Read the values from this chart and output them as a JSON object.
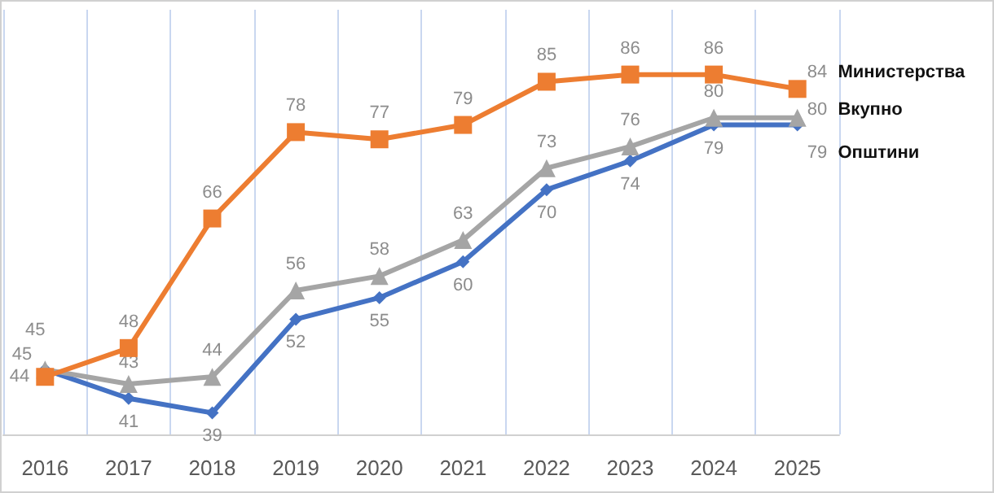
{
  "chart_data": {
    "type": "line",
    "categories": [
      "2016",
      "2017",
      "2018",
      "2019",
      "2020",
      "2021",
      "2022",
      "2023",
      "2024",
      "2025"
    ],
    "series": [
      {
        "name": "Министерства",
        "color": "#ed7d31",
        "marker": "square",
        "values": [
          44,
          48,
          66,
          78,
          77,
          79,
          85,
          86,
          86,
          84
        ]
      },
      {
        "name": "Вкупно",
        "color": "#a5a5a5",
        "marker": "triangle",
        "values": [
          45,
          43,
          44,
          56,
          58,
          63,
          73,
          76,
          80,
          80
        ]
      },
      {
        "name": "Општини",
        "color": "#4472c4",
        "marker": "diamond",
        "values": [
          45,
          41,
          39,
          52,
          55,
          60,
          70,
          74,
          79,
          79
        ]
      }
    ],
    "ylim": [
      36,
      95
    ],
    "grid": "x",
    "data_labels": true,
    "tick_labels": "x",
    "legend": false
  }
}
